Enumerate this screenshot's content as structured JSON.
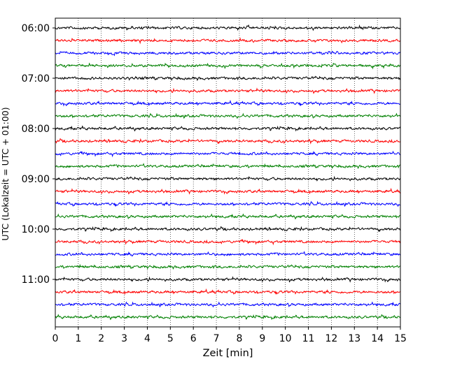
{
  "chart_data": {
    "type": "line",
    "title": "",
    "xlabel": "Zeit  [min]",
    "ylabel": "UTC (Lokalzeit = UTC + 01:00)",
    "xlim": [
      0,
      15
    ],
    "x_ticks": [
      "0",
      "1",
      "2",
      "3",
      "4",
      "5",
      "6",
      "7",
      "8",
      "9",
      "10",
      "11",
      "12",
      "13",
      "14",
      "15"
    ],
    "y_ticks": [
      "06:00",
      "07:00",
      "08:00",
      "09:00",
      "10:00",
      "11:00"
    ],
    "trace_interval_min": 15,
    "row_start_times": [
      "06:00",
      "06:15",
      "06:30",
      "06:45",
      "07:00",
      "07:15",
      "07:30",
      "07:45",
      "08:00",
      "08:15",
      "08:30",
      "08:45",
      "09:00",
      "09:15",
      "09:30",
      "09:45",
      "10:00",
      "10:15",
      "10:30",
      "10:45",
      "11:00",
      "11:15",
      "11:30",
      "11:45"
    ],
    "trace_colors": [
      "#000000",
      "#ff0000",
      "#0000ff",
      "#008000"
    ],
    "grid": "vertical dotted at every minute",
    "legend": "none"
  }
}
